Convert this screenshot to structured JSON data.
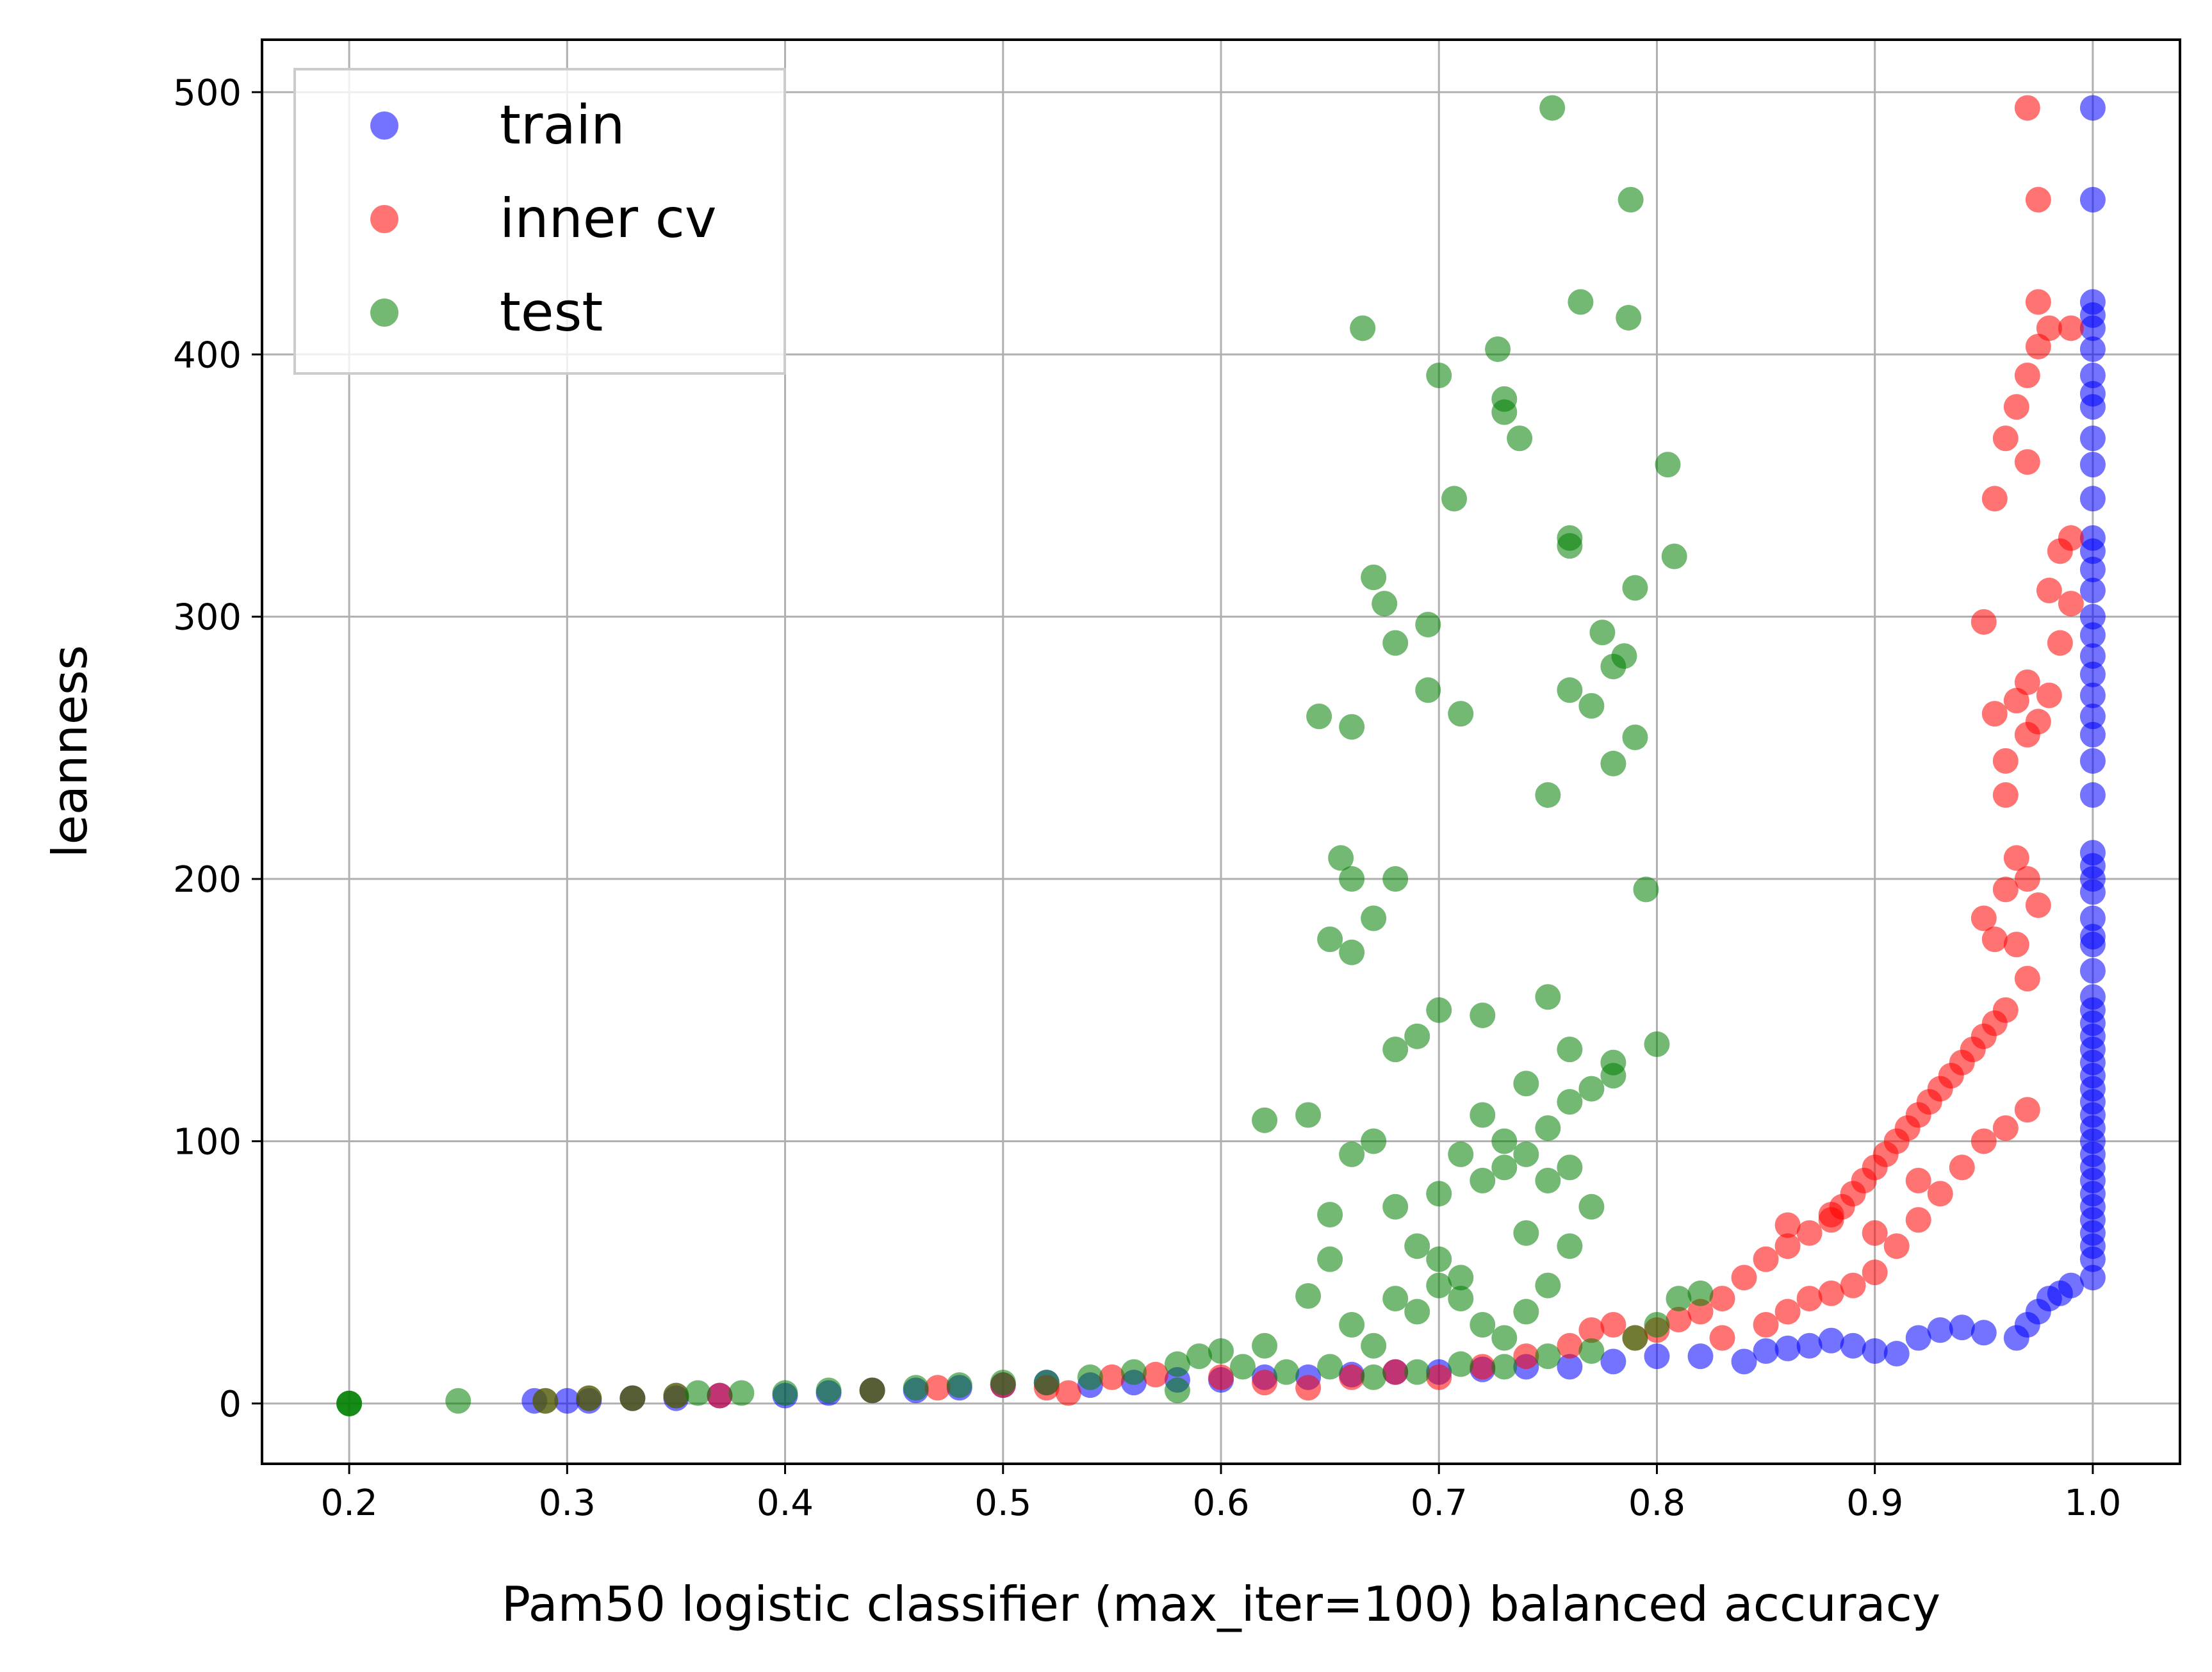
{
  "chart_data": {
    "type": "scatter",
    "title": "",
    "xlabel": "Pam50 logistic classifier (max_iter=100) balanced accuracy",
    "ylabel": "leanness",
    "xlim": [
      0.16,
      1.04
    ],
    "ylim": [
      -23,
      520
    ],
    "xticks": [
      "0.2",
      "0.3",
      "0.4",
      "0.5",
      "0.6",
      "0.7",
      "0.8",
      "0.9",
      "1.0"
    ],
    "yticks": [
      "0",
      "100",
      "200",
      "300",
      "400",
      "500"
    ],
    "grid": true,
    "legend_position": "top-left",
    "series": [
      {
        "name": "train",
        "color": "#0000ff",
        "alpha": 0.55,
        "points": [
          [
            0.285,
            1
          ],
          [
            0.3,
            1
          ],
          [
            0.31,
            1
          ],
          [
            0.33,
            2
          ],
          [
            0.35,
            2
          ],
          [
            0.37,
            3
          ],
          [
            0.4,
            3
          ],
          [
            0.42,
            4
          ],
          [
            0.44,
            5
          ],
          [
            0.46,
            5
          ],
          [
            0.48,
            6
          ],
          [
            0.5,
            7
          ],
          [
            0.52,
            8
          ],
          [
            0.54,
            7
          ],
          [
            0.56,
            8
          ],
          [
            0.58,
            9
          ],
          [
            0.6,
            9
          ],
          [
            0.62,
            10
          ],
          [
            0.64,
            10
          ],
          [
            0.66,
            11
          ],
          [
            0.68,
            12
          ],
          [
            0.7,
            12
          ],
          [
            0.72,
            13
          ],
          [
            0.74,
            14
          ],
          [
            0.76,
            14
          ],
          [
            0.78,
            16
          ],
          [
            0.8,
            18
          ],
          [
            0.82,
            18
          ],
          [
            0.84,
            16
          ],
          [
            0.85,
            20
          ],
          [
            0.86,
            21
          ],
          [
            0.87,
            22
          ],
          [
            0.88,
            24
          ],
          [
            0.89,
            22
          ],
          [
            0.9,
            20
          ],
          [
            0.91,
            19
          ],
          [
            0.92,
            25
          ],
          [
            0.93,
            28
          ],
          [
            0.94,
            29
          ],
          [
            0.95,
            27
          ],
          [
            0.965,
            25
          ],
          [
            0.97,
            30
          ],
          [
            0.975,
            35
          ],
          [
            0.98,
            40
          ],
          [
            0.985,
            42
          ],
          [
            0.99,
            45
          ],
          [
            1.0,
            48
          ],
          [
            1.0,
            55
          ],
          [
            1.0,
            60
          ],
          [
            1.0,
            65
          ],
          [
            1.0,
            70
          ],
          [
            1.0,
            75
          ],
          [
            1.0,
            80
          ],
          [
            1.0,
            85
          ],
          [
            1.0,
            90
          ],
          [
            1.0,
            95
          ],
          [
            1.0,
            100
          ],
          [
            1.0,
            105
          ],
          [
            1.0,
            110
          ],
          [
            1.0,
            115
          ],
          [
            1.0,
            120
          ],
          [
            1.0,
            125
          ],
          [
            1.0,
            130
          ],
          [
            1.0,
            135
          ],
          [
            1.0,
            140
          ],
          [
            1.0,
            145
          ],
          [
            1.0,
            150
          ],
          [
            1.0,
            155
          ],
          [
            1.0,
            165
          ],
          [
            1.0,
            175
          ],
          [
            1.0,
            178
          ],
          [
            1.0,
            185
          ],
          [
            1.0,
            195
          ],
          [
            1.0,
            200
          ],
          [
            1.0,
            205
          ],
          [
            1.0,
            210
          ],
          [
            1.0,
            232
          ],
          [
            1.0,
            245
          ],
          [
            1.0,
            255
          ],
          [
            1.0,
            262
          ],
          [
            1.0,
            270
          ],
          [
            1.0,
            278
          ],
          [
            1.0,
            285
          ],
          [
            1.0,
            293
          ],
          [
            1.0,
            300
          ],
          [
            1.0,
            310
          ],
          [
            1.0,
            318
          ],
          [
            1.0,
            325
          ],
          [
            1.0,
            330
          ],
          [
            1.0,
            345
          ],
          [
            1.0,
            358
          ],
          [
            1.0,
            368
          ],
          [
            1.0,
            380
          ],
          [
            1.0,
            385
          ],
          [
            1.0,
            392
          ],
          [
            1.0,
            402
          ],
          [
            1.0,
            410
          ],
          [
            1.0,
            415
          ],
          [
            1.0,
            420
          ],
          [
            1.0,
            459
          ],
          [
            1.0,
            494
          ]
        ]
      },
      {
        "name": "inner cv",
        "color": "#ff0000",
        "alpha": 0.55,
        "points": [
          [
            0.29,
            1
          ],
          [
            0.31,
            2
          ],
          [
            0.33,
            2
          ],
          [
            0.35,
            3
          ],
          [
            0.37,
            3
          ],
          [
            0.44,
            5
          ],
          [
            0.47,
            6
          ],
          [
            0.5,
            7
          ],
          [
            0.52,
            6
          ],
          [
            0.53,
            4
          ],
          [
            0.55,
            10
          ],
          [
            0.57,
            11
          ],
          [
            0.6,
            10
          ],
          [
            0.62,
            8
          ],
          [
            0.64,
            6
          ],
          [
            0.66,
            10
          ],
          [
            0.68,
            12
          ],
          [
            0.7,
            10
          ],
          [
            0.72,
            14
          ],
          [
            0.74,
            18
          ],
          [
            0.76,
            22
          ],
          [
            0.77,
            28
          ],
          [
            0.78,
            30
          ],
          [
            0.79,
            25
          ],
          [
            0.8,
            28
          ],
          [
            0.81,
            32
          ],
          [
            0.82,
            35
          ],
          [
            0.83,
            40
          ],
          [
            0.84,
            48
          ],
          [
            0.85,
            55
          ],
          [
            0.86,
            60
          ],
          [
            0.87,
            65
          ],
          [
            0.88,
            70
          ],
          [
            0.885,
            75
          ],
          [
            0.89,
            80
          ],
          [
            0.895,
            85
          ],
          [
            0.9,
            90
          ],
          [
            0.905,
            95
          ],
          [
            0.91,
            100
          ],
          [
            0.915,
            105
          ],
          [
            0.92,
            110
          ],
          [
            0.925,
            115
          ],
          [
            0.93,
            120
          ],
          [
            0.935,
            125
          ],
          [
            0.94,
            130
          ],
          [
            0.945,
            135
          ],
          [
            0.95,
            140
          ],
          [
            0.955,
            145
          ],
          [
            0.96,
            150
          ],
          [
            0.83,
            25
          ],
          [
            0.85,
            30
          ],
          [
            0.86,
            35
          ],
          [
            0.87,
            40
          ],
          [
            0.88,
            42
          ],
          [
            0.89,
            45
          ],
          [
            0.9,
            50
          ],
          [
            0.91,
            60
          ],
          [
            0.92,
            70
          ],
          [
            0.93,
            80
          ],
          [
            0.94,
            90
          ],
          [
            0.95,
            100
          ],
          [
            0.96,
            105
          ],
          [
            0.97,
            112
          ],
          [
            0.9,
            65
          ],
          [
            0.88,
            72
          ],
          [
            0.86,
            68
          ],
          [
            0.92,
            85
          ],
          [
            0.95,
            185
          ],
          [
            0.955,
            177
          ],
          [
            0.96,
            196
          ],
          [
            0.965,
            208
          ],
          [
            0.97,
            200
          ],
          [
            0.975,
            190
          ],
          [
            0.97,
            162
          ],
          [
            0.965,
            175
          ],
          [
            0.955,
            263
          ],
          [
            0.96,
            245
          ],
          [
            0.965,
            268
          ],
          [
            0.97,
            275
          ],
          [
            0.975,
            260
          ],
          [
            0.98,
            270
          ],
          [
            0.985,
            290
          ],
          [
            0.99,
            305
          ],
          [
            0.98,
            310
          ],
          [
            0.985,
            325
          ],
          [
            0.99,
            330
          ],
          [
            0.95,
            298
          ],
          [
            0.96,
            232
          ],
          [
            0.97,
            255
          ],
          [
            0.955,
            345
          ],
          [
            0.96,
            368
          ],
          [
            0.965,
            380
          ],
          [
            0.97,
            392
          ],
          [
            0.975,
            403
          ],
          [
            0.98,
            410
          ],
          [
            0.975,
            420
          ],
          [
            0.97,
            359
          ],
          [
            0.99,
            410
          ],
          [
            0.975,
            459
          ],
          [
            0.97,
            494
          ]
        ]
      },
      {
        "name": "test",
        "color": "#008000",
        "alpha": 0.55,
        "points": [
          [
            0.2,
            0
          ],
          [
            0.2,
            0
          ],
          [
            0.2,
            0
          ],
          [
            0.25,
            1
          ],
          [
            0.29,
            1
          ],
          [
            0.31,
            2
          ],
          [
            0.33,
            2
          ],
          [
            0.35,
            3
          ],
          [
            0.36,
            4
          ],
          [
            0.38,
            4
          ],
          [
            0.4,
            4
          ],
          [
            0.42,
            5
          ],
          [
            0.44,
            5
          ],
          [
            0.46,
            6
          ],
          [
            0.48,
            7
          ],
          [
            0.5,
            8
          ],
          [
            0.52,
            8
          ],
          [
            0.54,
            10
          ],
          [
            0.56,
            12
          ],
          [
            0.58,
            15
          ],
          [
            0.59,
            18
          ],
          [
            0.6,
            20
          ],
          [
            0.62,
            22
          ],
          [
            0.61,
            14
          ],
          [
            0.63,
            12
          ],
          [
            0.65,
            14
          ],
          [
            0.67,
            10
          ],
          [
            0.69,
            12
          ],
          [
            0.71,
            15
          ],
          [
            0.73,
            14
          ],
          [
            0.75,
            18
          ],
          [
            0.77,
            20
          ],
          [
            0.79,
            25
          ],
          [
            0.8,
            30
          ],
          [
            0.81,
            40
          ],
          [
            0.82,
            42
          ],
          [
            0.58,
            5
          ],
          [
            0.62,
            108
          ],
          [
            0.64,
            110
          ],
          [
            0.65,
            72
          ],
          [
            0.66,
            95
          ],
          [
            0.67,
            100
          ],
          [
            0.68,
            75
          ],
          [
            0.69,
            60
          ],
          [
            0.7,
            55
          ],
          [
            0.71,
            48
          ],
          [
            0.72,
            85
          ],
          [
            0.73,
            90
          ],
          [
            0.74,
            95
          ],
          [
            0.75,
            105
          ],
          [
            0.76,
            115
          ],
          [
            0.77,
            120
          ],
          [
            0.78,
            125
          ],
          [
            0.68,
            40
          ],
          [
            0.69,
            35
          ],
          [
            0.7,
            45
          ],
          [
            0.71,
            40
          ],
          [
            0.72,
            30
          ],
          [
            0.73,
            25
          ],
          [
            0.74,
            35
          ],
          [
            0.75,
            45
          ],
          [
            0.76,
            60
          ],
          [
            0.77,
            75
          ],
          [
            0.7,
            80
          ],
          [
            0.71,
            95
          ],
          [
            0.72,
            110
          ],
          [
            0.73,
            100
          ],
          [
            0.74,
            65
          ],
          [
            0.75,
            85
          ],
          [
            0.76,
            90
          ],
          [
            0.68,
            135
          ],
          [
            0.69,
            140
          ],
          [
            0.7,
            150
          ],
          [
            0.72,
            148
          ],
          [
            0.74,
            122
          ],
          [
            0.75,
            155
          ],
          [
            0.76,
            135
          ],
          [
            0.78,
            130
          ],
          [
            0.8,
            137
          ],
          [
            0.66,
            172
          ],
          [
            0.65,
            177
          ],
          [
            0.67,
            185
          ],
          [
            0.68,
            200
          ],
          [
            0.655,
            208
          ],
          [
            0.66,
            200
          ],
          [
            0.64,
            41
          ],
          [
            0.65,
            55
          ],
          [
            0.66,
            30
          ],
          [
            0.67,
            22
          ],
          [
            0.645,
            262
          ],
          [
            0.66,
            258
          ],
          [
            0.67,
            315
          ],
          [
            0.675,
            305
          ],
          [
            0.68,
            290
          ],
          [
            0.695,
            297
          ],
          [
            0.695,
            272
          ],
          [
            0.71,
            263
          ],
          [
            0.75,
            232
          ],
          [
            0.76,
            272
          ],
          [
            0.77,
            266
          ],
          [
            0.78,
            244
          ],
          [
            0.79,
            254
          ],
          [
            0.78,
            281
          ],
          [
            0.785,
            285
          ],
          [
            0.775,
            294
          ],
          [
            0.79,
            311
          ],
          [
            0.795,
            196
          ],
          [
            0.665,
            410
          ],
          [
            0.7,
            392
          ],
          [
            0.707,
            345
          ],
          [
            0.727,
            402
          ],
          [
            0.73,
            383
          ],
          [
            0.73,
            378
          ],
          [
            0.737,
            368
          ],
          [
            0.76,
            330
          ],
          [
            0.76,
            327
          ],
          [
            0.805,
            358
          ],
          [
            0.808,
            323
          ],
          [
            0.765,
            420
          ],
          [
            0.787,
            414
          ],
          [
            0.788,
            459
          ],
          [
            0.752,
            494
          ]
        ]
      }
    ]
  }
}
